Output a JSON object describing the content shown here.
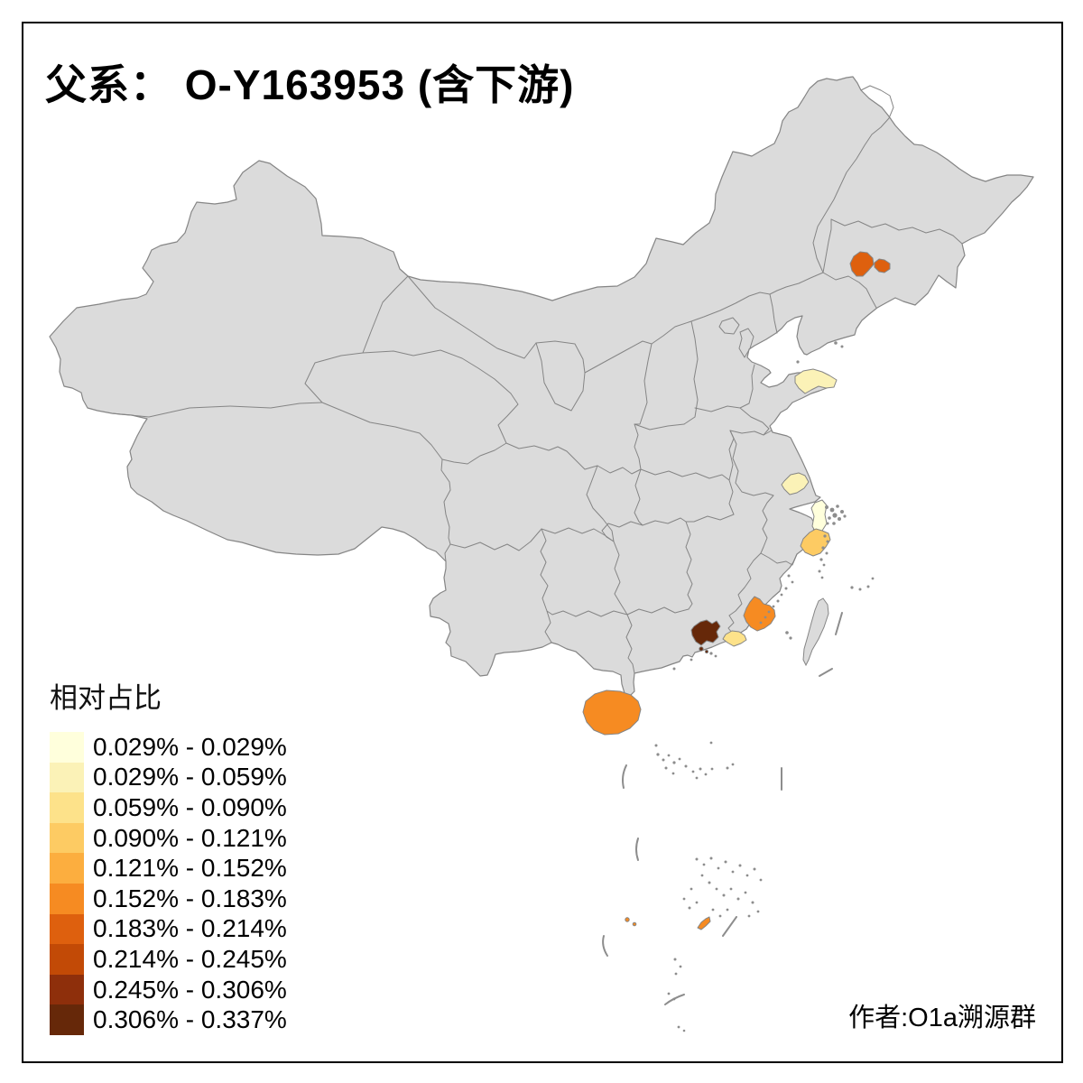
{
  "title": "父系： O-Y163953 (含下游)",
  "legend": {
    "title": "相对占比",
    "items": [
      {
        "label": "0.029% - 0.029%",
        "color": "#FFFFDC"
      },
      {
        "label": "0.029% - 0.059%",
        "color": "#FBF2B7"
      },
      {
        "label": "0.059% - 0.090%",
        "color": "#FDE28A"
      },
      {
        "label": "0.090% - 0.121%",
        "color": "#FDCB63"
      },
      {
        "label": "0.121% - 0.152%",
        "color": "#FCAE3F"
      },
      {
        "label": "0.152% - 0.183%",
        "color": "#F68B22"
      },
      {
        "label": "0.183% - 0.214%",
        "color": "#DE600E"
      },
      {
        "label": "0.214% - 0.245%",
        "color": "#C24A06"
      },
      {
        "label": "0.245% - 0.306%",
        "color": "#8E2F0B"
      },
      {
        "label": "0.306% - 0.337%",
        "color": "#662809"
      }
    ]
  },
  "attribution": "作者:O1a溯源群",
  "map": {
    "land_fill": "#DBDBDB",
    "border_color": "#858585",
    "sea_color": "#FFFFFF",
    "frame_color": "#000000",
    "regions": [
      {
        "id": "region-jilin-west",
        "class": 7,
        "range": "0.183% - 0.214%"
      },
      {
        "id": "region-jilin-east",
        "class": 7,
        "range": "0.183% - 0.214%"
      },
      {
        "id": "region-shandong",
        "class": 2,
        "range": "0.029% - 0.059%"
      },
      {
        "id": "region-jiangsu",
        "class": 2,
        "range": "0.029% - 0.059%"
      },
      {
        "id": "region-zhejiang-north",
        "class": 1,
        "range": "0.029% - 0.029%"
      },
      {
        "id": "region-zhejiang-coast",
        "class": 4,
        "range": "0.090% - 0.121%"
      },
      {
        "id": "region-fujian-south",
        "class": 6,
        "range": "0.152% - 0.183%"
      },
      {
        "id": "region-chaoshan",
        "class": 3,
        "range": "0.059% - 0.090%"
      },
      {
        "id": "region-guangdong-dark",
        "class": 10,
        "range": "0.306% - 0.337%"
      },
      {
        "id": "region-guangdong-dot-1",
        "class": 10,
        "range": "0.306% - 0.337%"
      },
      {
        "id": "region-guangdong-dot-2",
        "class": 10,
        "range": "0.306% - 0.337%"
      },
      {
        "id": "region-hainan",
        "class": 6,
        "range": "0.152% - 0.183%"
      },
      {
        "id": "region-xisha-islet",
        "class": 6,
        "range": "0.152% - 0.183%"
      },
      {
        "id": "region-xisha-dot-1",
        "class": 6,
        "range": "0.152% - 0.183%"
      },
      {
        "id": "region-xisha-dot-2",
        "class": 6,
        "range": "0.152% - 0.183%"
      }
    ]
  }
}
